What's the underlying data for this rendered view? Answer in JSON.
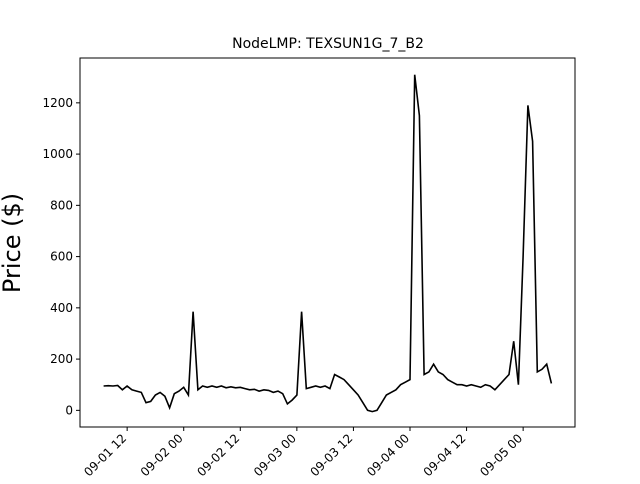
{
  "chart_data": {
    "type": "line",
    "title": "NodeLMP: TEXSUN1G_7_B2",
    "y_label": "Price ($)",
    "x_start": "09-01 07",
    "series": [
      {
        "name": "Price",
        "color": "#000000",
        "values": [
          95,
          96,
          95,
          97,
          80,
          95,
          80,
          75,
          70,
          30,
          35,
          60,
          70,
          55,
          10,
          65,
          75,
          90,
          60,
          385,
          80,
          95,
          90,
          95,
          90,
          95,
          88,
          92,
          88,
          90,
          85,
          80,
          82,
          75,
          80,
          78,
          70,
          75,
          65,
          25,
          40,
          60,
          385,
          85,
          90,
          95,
          90,
          95,
          85,
          140,
          130,
          120,
          100,
          80,
          60,
          30,
          0,
          -5,
          0,
          30,
          60,
          70,
          80,
          100,
          110,
          120,
          1310,
          1150,
          140,
          150,
          180,
          150,
          140,
          120,
          110,
          100,
          100,
          95,
          100,
          95,
          90,
          100,
          95,
          80,
          100,
          120,
          140,
          270,
          100,
          600,
          1190,
          1050,
          150,
          160,
          180,
          105
        ]
      }
    ],
    "xlim": [
      "09-01 02",
      "09-05 11"
    ],
    "xticks": [
      "09-01 12",
      "09-02 00",
      "09-02 12",
      "09-03 00",
      "09-03 12",
      "09-04 00",
      "09-04 12",
      "09-05 00"
    ],
    "ylim": [
      -65,
      1375
    ],
    "yticks": [
      0,
      200,
      400,
      600,
      800,
      1000,
      1200
    ]
  }
}
